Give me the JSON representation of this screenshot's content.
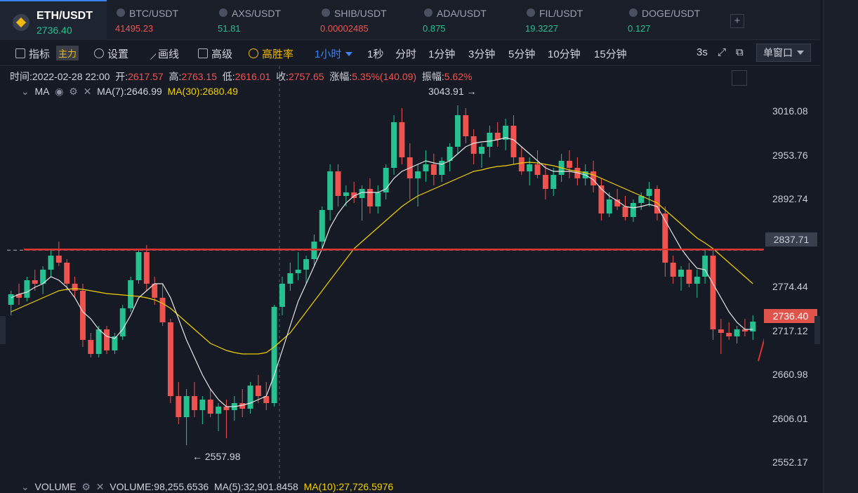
{
  "pairs": [
    {
      "name": "ETH/USDT",
      "price": "2736.40",
      "color": "#26c190",
      "active": true
    },
    {
      "name": "BTC/USDT",
      "price": "41495.23",
      "color": "#ef5350"
    },
    {
      "name": "AXS/USDT",
      "price": "51.81",
      "color": "#26c190"
    },
    {
      "name": "SHIB/USDT",
      "price": "0.00002485",
      "color": "#ef5350"
    },
    {
      "name": "ADA/USDT",
      "price": "0.875",
      "color": "#26c190"
    },
    {
      "name": "FIL/USDT",
      "price": "19.3227",
      "color": "#26c190"
    },
    {
      "name": "DOGE/USDT",
      "price": "0.127",
      "color": "#26c190"
    }
  ],
  "add_tab_label": "+",
  "toolbar": {
    "indicator": "指标",
    "main_tag": "主力",
    "settings": "设置",
    "draw": "画线",
    "advanced": "高级",
    "win_rate": "高胜率",
    "interval": "1小时",
    "intervals": [
      "1秒",
      "分时",
      "1分钟",
      "3分钟",
      "5分钟",
      "10分钟",
      "15分钟"
    ],
    "refresh": "3s",
    "window_mode": "单窗口"
  },
  "info": {
    "time_label": "时间:",
    "time": "2022-02-28 22:00",
    "open_label": "开:",
    "open": "2617.57",
    "high_label": "高:",
    "high": "2763.15",
    "low_label": "低:",
    "low": "2616.01",
    "close_label": "收:",
    "close": "2757.65",
    "change_label": "涨幅:",
    "change": "5.35%(140.09)",
    "amp_label": "振幅:",
    "amp": "5.62%"
  },
  "ma_bar": {
    "name": "MA",
    "ma7": "MA(7):2646.99",
    "ma30": "MA(30):2680.49"
  },
  "volume_bar": {
    "name": "VOLUME",
    "volume": "VOLUME:98,255.6536",
    "ma5": "MA(5):32,901.8458",
    "ma10": "MA(10):27,726.5976"
  },
  "price_ticks": [
    "3016.08",
    "2953.76",
    "2892.74",
    "2774.44",
    "2717.12",
    "2660.98",
    "2606.01",
    "2552.17"
  ],
  "current_price": "2736.40",
  "line_price": "2837.71",
  "high_label": "3043.91 →",
  "low_label": "← 2557.98",
  "colors": {
    "up": "#26c190",
    "down": "#ef5350",
    "ma7": "#e6e6e6",
    "ma30": "#f0d000",
    "bg": "#161a25"
  },
  "chart_data": {
    "type": "candlestick",
    "y_range": [
      2520,
      3070
    ],
    "candles": [
      [
        2760,
        2780,
        2745,
        2775
      ],
      [
        2775,
        2790,
        2760,
        2770
      ],
      [
        2770,
        2800,
        2765,
        2795
      ],
      [
        2795,
        2810,
        2780,
        2790
      ],
      [
        2790,
        2815,
        2775,
        2810
      ],
      [
        2810,
        2840,
        2800,
        2830
      ],
      [
        2830,
        2850,
        2815,
        2820
      ],
      [
        2820,
        2825,
        2780,
        2790
      ],
      [
        2790,
        2800,
        2770,
        2780
      ],
      [
        2780,
        2790,
        2700,
        2710
      ],
      [
        2710,
        2720,
        2685,
        2690
      ],
      [
        2690,
        2730,
        2685,
        2725
      ],
      [
        2725,
        2730,
        2690,
        2695
      ],
      [
        2695,
        2720,
        2690,
        2715
      ],
      [
        2715,
        2760,
        2710,
        2755
      ],
      [
        2755,
        2800,
        2750,
        2795
      ],
      [
        2795,
        2840,
        2790,
        2835
      ],
      [
        2835,
        2845,
        2780,
        2790
      ],
      [
        2790,
        2800,
        2760,
        2770
      ],
      [
        2770,
        2790,
        2730,
        2735
      ],
      [
        2735,
        2740,
        2620,
        2630
      ],
      [
        2630,
        2650,
        2590,
        2600
      ],
      [
        2600,
        2640,
        2560,
        2630
      ],
      [
        2630,
        2650,
        2600,
        2610
      ],
      [
        2610,
        2630,
        2590,
        2625
      ],
      [
        2625,
        2640,
        2600,
        2605
      ],
      [
        2605,
        2620,
        2580,
        2615
      ],
      [
        2615,
        2625,
        2570,
        2610
      ],
      [
        2610,
        2630,
        2595,
        2620
      ],
      [
        2620,
        2640,
        2600,
        2612
      ],
      [
        2612,
        2650,
        2605,
        2645
      ],
      [
        2645,
        2660,
        2620,
        2630
      ],
      [
        2630,
        2650,
        2610,
        2620
      ],
      [
        2620,
        2760,
        2615,
        2757
      ],
      [
        2757,
        2800,
        2745,
        2790
      ],
      [
        2790,
        2820,
        2780,
        2805
      ],
      [
        2805,
        2835,
        2795,
        2810
      ],
      [
        2810,
        2830,
        2790,
        2825
      ],
      [
        2825,
        2860,
        2815,
        2850
      ],
      [
        2850,
        2900,
        2840,
        2895
      ],
      [
        2895,
        2960,
        2880,
        2950
      ],
      [
        2950,
        2960,
        2900,
        2915
      ],
      [
        2915,
        2930,
        2900,
        2920
      ],
      [
        2920,
        2935,
        2905,
        2912
      ],
      [
        2912,
        2930,
        2880,
        2925
      ],
      [
        2925,
        2940,
        2890,
        2900
      ],
      [
        2900,
        2930,
        2890,
        2920
      ],
      [
        2920,
        2960,
        2910,
        2955
      ],
      [
        2955,
        3030,
        2945,
        3020
      ],
      [
        3020,
        3040,
        2960,
        2970
      ],
      [
        2970,
        2990,
        2910,
        2940
      ],
      [
        2940,
        2960,
        2900,
        2950
      ],
      [
        2950,
        2980,
        2935,
        2960
      ],
      [
        2960,
        2975,
        2930,
        2945
      ],
      [
        2945,
        2970,
        2935,
        2965
      ],
      [
        2965,
        2990,
        2950,
        2985
      ],
      [
        2985,
        3044,
        2975,
        3030
      ],
      [
        3030,
        3040,
        2990,
        3000
      ],
      [
        3000,
        3010,
        2960,
        2975
      ],
      [
        2975,
        2990,
        2955,
        2985
      ],
      [
        2985,
        3015,
        2970,
        3005
      ],
      [
        3005,
        3020,
        2985,
        2995
      ],
      [
        2995,
        3025,
        2980,
        3015
      ],
      [
        3015,
        3030,
        2960,
        2970
      ],
      [
        2970,
        2985,
        2945,
        2950
      ],
      [
        2950,
        2970,
        2930,
        2960
      ],
      [
        2960,
        2980,
        2940,
        2945
      ],
      [
        2945,
        2960,
        2910,
        2925
      ],
      [
        2925,
        2955,
        2915,
        2945
      ],
      [
        2945,
        2975,
        2935,
        2965
      ],
      [
        2965,
        2980,
        2940,
        2955
      ],
      [
        2955,
        2970,
        2930,
        2940
      ],
      [
        2940,
        2960,
        2930,
        2950
      ],
      [
        2950,
        2965,
        2920,
        2930
      ],
      [
        2930,
        2940,
        2880,
        2890
      ],
      [
        2890,
        2920,
        2885,
        2910
      ],
      [
        2910,
        2925,
        2895,
        2900
      ],
      [
        2900,
        2915,
        2880,
        2885
      ],
      [
        2885,
        2910,
        2878,
        2905
      ],
      [
        2905,
        2920,
        2895,
        2915
      ],
      [
        2915,
        2935,
        2900,
        2925
      ],
      [
        2925,
        2930,
        2880,
        2890
      ],
      [
        2890,
        2900,
        2800,
        2820
      ],
      [
        2820,
        2830,
        2790,
        2800
      ],
      [
        2800,
        2815,
        2780,
        2810
      ],
      [
        2810,
        2820,
        2785,
        2790
      ],
      [
        2790,
        2810,
        2770,
        2800
      ],
      [
        2800,
        2840,
        2790,
        2830
      ],
      [
        2830,
        2840,
        2710,
        2725
      ],
      [
        2725,
        2740,
        2690,
        2720
      ],
      [
        2720,
        2735,
        2710,
        2715
      ],
      [
        2715,
        2730,
        2705,
        2725
      ],
      [
        2725,
        2740,
        2715,
        2722
      ],
      [
        2722,
        2745,
        2710,
        2736
      ]
    ],
    "ma7": [
      2770,
      2775,
      2778,
      2785,
      2790,
      2800,
      2795,
      2785,
      2770,
      2750,
      2740,
      2725,
      2715,
      2712,
      2725,
      2745,
      2770,
      2780,
      2790,
      2790,
      2770,
      2740,
      2710,
      2685,
      2660,
      2640,
      2625,
      2615,
      2615,
      2617,
      2620,
      2625,
      2630,
      2660,
      2695,
      2730,
      2765,
      2790,
      2815,
      2840,
      2870,
      2890,
      2905,
      2915,
      2920,
      2920,
      2920,
      2925,
      2940,
      2950,
      2955,
      2960,
      2965,
      2962,
      2960,
      2965,
      2975,
      2985,
      2990,
      2992,
      2993,
      2995,
      2998,
      2995,
      2985,
      2975,
      2965,
      2955,
      2950,
      2950,
      2950,
      2948,
      2945,
      2938,
      2925,
      2915,
      2908,
      2900,
      2898,
      2900,
      2903,
      2900,
      2880,
      2860,
      2840,
      2825,
      2812,
      2810,
      2790,
      2770,
      2750,
      2735,
      2725,
      2725
    ],
    "ma30": [
      2750,
      2755,
      2760,
      2765,
      2770,
      2775,
      2780,
      2782,
      2783,
      2782,
      2780,
      2778,
      2776,
      2775,
      2774,
      2773,
      2772,
      2770,
      2767,
      2762,
      2755,
      2745,
      2735,
      2725,
      2715,
      2705,
      2700,
      2695,
      2692,
      2690,
      2690,
      2690,
      2692,
      2700,
      2710,
      2720,
      2735,
      2750,
      2765,
      2780,
      2795,
      2810,
      2825,
      2840,
      2850,
      2860,
      2870,
      2880,
      2890,
      2900,
      2908,
      2915,
      2920,
      2925,
      2930,
      2935,
      2940,
      2945,
      2950,
      2952,
      2955,
      2957,
      2958,
      2960,
      2962,
      2963,
      2962,
      2960,
      2958,
      2955,
      2952,
      2950,
      2948,
      2945,
      2940,
      2935,
      2930,
      2925,
      2920,
      2915,
      2910,
      2905,
      2895,
      2885,
      2875,
      2865,
      2855,
      2848,
      2840,
      2830,
      2820,
      2810,
      2800,
      2790
    ]
  }
}
